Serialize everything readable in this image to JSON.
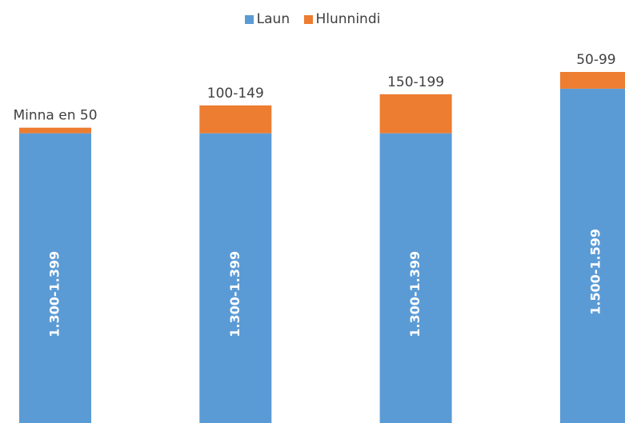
{
  "colors": {
    "laun": "#5b9bd5",
    "hlunnindi": "#ed7d31",
    "text": "#404040",
    "inner_label": "#ffffff"
  },
  "legend": {
    "laun": "Laun",
    "hlunnindi": "Hlunnindi"
  },
  "chart_data": {
    "type": "bar",
    "stacked": true,
    "title": "",
    "xlabel": "",
    "ylabel": "",
    "legend_position": "top",
    "grid": false,
    "categories": [
      "Minna en 50",
      "100-149",
      "150-199",
      "50-99"
    ],
    "series": [
      {
        "name": "Laun",
        "values": [
          1300,
          1300,
          1300,
          1500
        ],
        "labels": [
          "1.300-1.399",
          "1.300-1.399",
          "1.300-1.399",
          "1.500-1.599"
        ]
      },
      {
        "name": "Hlunnindi",
        "values": [
          25,
          125,
          175,
          75
        ],
        "labels": [
          "Minna en 50",
          "100-149",
          "150-199",
          "50-99"
        ]
      }
    ],
    "ylim": [
      0,
      1575
    ]
  }
}
